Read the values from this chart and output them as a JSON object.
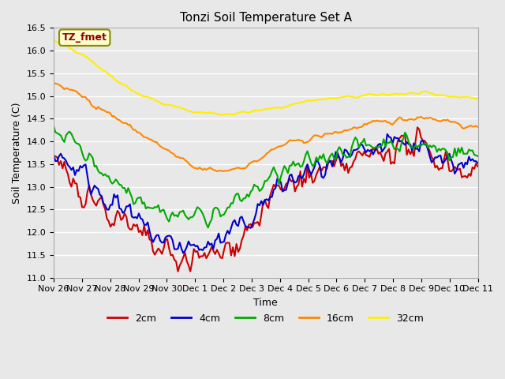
{
  "title": "Tonzi Soil Temperature Set A",
  "xlabel": "Time",
  "ylabel": "Soil Temperature (C)",
  "ylim": [
    11.0,
    16.5
  ],
  "background_color": "#e8e8e8",
  "plot_bg_color": "#e8e8e8",
  "annotation_text": "TZ_fmet",
  "annotation_color": "#8b0000",
  "annotation_bg": "#ffffcc",
  "annotation_border": "#8b8b00",
  "x_tick_labels": [
    "Nov 26",
    "Nov 27",
    "Nov 28",
    "Nov 29",
    "Nov 30",
    "Dec 1",
    "Dec 2",
    "Dec 3",
    "Dec 4",
    "Dec 5",
    "Dec 6",
    "Dec 7",
    "Dec 8",
    "Dec 9",
    "Dec 10",
    "Dec 11"
  ],
  "series": {
    "2cm": {
      "color": "#cc0000",
      "linewidth": 1.5
    },
    "4cm": {
      "color": "#0000cc",
      "linewidth": 1.5
    },
    "8cm": {
      "color": "#00aa00",
      "linewidth": 1.5
    },
    "16cm": {
      "color": "#ff8800",
      "linewidth": 1.5
    },
    "32cm": {
      "color": "#ffee00",
      "linewidth": 1.5
    }
  },
  "yticks": [
    11.0,
    11.5,
    12.0,
    12.5,
    13.0,
    13.5,
    14.0,
    14.5,
    15.0,
    15.5,
    16.0,
    16.5
  ],
  "num_points": 240
}
